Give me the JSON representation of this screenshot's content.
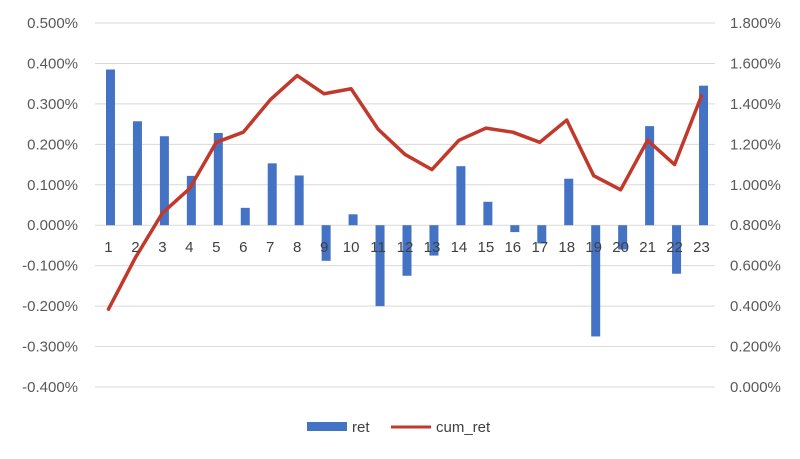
{
  "chart_data": {
    "type": "bar",
    "categories": [
      "1",
      "2",
      "3",
      "4",
      "5",
      "6",
      "7",
      "8",
      "9",
      "10",
      "11",
      "12",
      "13",
      "14",
      "15",
      "16",
      "17",
      "18",
      "19",
      "20",
      "21",
      "22",
      "23"
    ],
    "series": [
      {
        "name": "ret",
        "type": "bar",
        "axis": "left",
        "color": "#4472c4",
        "values": [
          0.385,
          0.257,
          0.22,
          0.122,
          0.228,
          0.043,
          0.153,
          0.123,
          -0.088,
          0.027,
          -0.2,
          -0.125,
          -0.075,
          0.146,
          0.058,
          -0.017,
          -0.045,
          0.115,
          -0.275,
          -0.06,
          0.245,
          -0.12,
          0.345
        ]
      },
      {
        "name": "cum_ret",
        "type": "line",
        "axis": "right",
        "color": "#c0392b",
        "values": [
          0.385,
          0.64,
          0.86,
          0.98,
          1.21,
          1.26,
          1.42,
          1.54,
          1.45,
          1.475,
          1.275,
          1.15,
          1.075,
          1.22,
          1.28,
          1.26,
          1.21,
          1.32,
          1.045,
          0.975,
          1.22,
          1.1,
          1.44
        ]
      }
    ],
    "y_left": {
      "ylim": [
        -0.4,
        0.5
      ],
      "ticks": [
        0.5,
        0.4,
        0.3,
        0.2,
        0.1,
        0.0,
        -0.1,
        -0.2,
        -0.3,
        -0.4
      ],
      "tick_labels": [
        "0.500%",
        "0.400%",
        "0.300%",
        "0.200%",
        "0.100%",
        "0.000%",
        "-0.100%",
        "-0.200%",
        "-0.300%",
        "-0.400%"
      ]
    },
    "y_right": {
      "ylim": [
        0.0,
        1.8
      ],
      "ticks": [
        1.8,
        1.6,
        1.4,
        1.2,
        1.0,
        0.8,
        0.6,
        0.4,
        0.2,
        0.0
      ],
      "tick_labels": [
        "1.800%",
        "1.600%",
        "1.400%",
        "1.200%",
        "1.000%",
        "0.800%",
        "0.600%",
        "0.400%",
        "0.200%",
        "0.000%"
      ]
    },
    "grid": true,
    "legend": {
      "position": "bottom",
      "entries": [
        {
          "label": "ret",
          "marker": "bar",
          "color": "#4472c4"
        },
        {
          "label": "cum_ret",
          "marker": "line",
          "color": "#c0392b"
        }
      ]
    },
    "title": "",
    "xlabel": "",
    "ylabel": ""
  }
}
